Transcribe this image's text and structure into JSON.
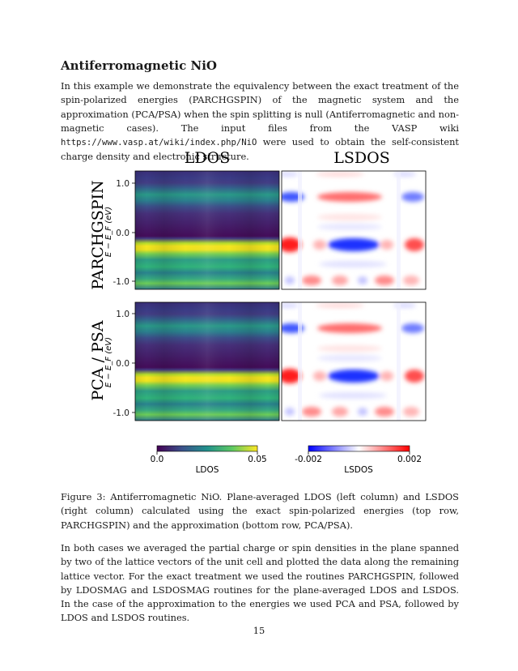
{
  "section": {
    "title": "Antiferromagnetic NiO"
  },
  "intro": {
    "text_before_url": "In this example we demonstrate the equivalency between the exact treatment of the spin-polarized energies (PARCHGSPIN) of the magnetic system and the approximation (PCA/PSA) when the spin splitting is null (Antiferromagnetic and non-magnetic cases). The input files from the VASP wiki ",
    "url": "https://www.vasp.at/wiki/index.php/NiO",
    "text_after_url": " were used to obtain the self-consistent charge density and electronic structure."
  },
  "figure": {
    "column_titles": [
      "LDOS",
      "LSDOS"
    ],
    "row_titles": [
      "PARCHGSPIN",
      "PCA / PSA"
    ],
    "y_axis_label": "E − E_F (eV)",
    "y_ticks": [
      "1.0",
      "0.0",
      "-1.0"
    ],
    "colorbars": [
      {
        "label": "LDOS",
        "min_label": "0.0",
        "max_label": "0.05",
        "colormap": "viridis"
      },
      {
        "label": "LSDOS",
        "min_label": "-0.002",
        "max_label": "0.002",
        "colormap": "bwr"
      }
    ]
  },
  "chart_data": [
    {
      "type": "heatmap",
      "title": "LDOS",
      "row": "PARCHGSPIN",
      "ylabel": "E − E_F (eV)",
      "ylim": [
        -1.1,
        1.3
      ],
      "yticks": [
        1.0,
        0.0,
        -1.0
      ],
      "colormap": "viridis",
      "clim": [
        0.0,
        0.05
      ],
      "bands_y_eV_value": [
        [
          1.05,
          0.025
        ],
        [
          0.72,
          0.02
        ],
        [
          -0.28,
          0.05
        ],
        [
          -0.68,
          0.03
        ],
        [
          -1.0,
          0.035
        ]
      ]
    },
    {
      "type": "heatmap",
      "title": "LSDOS",
      "row": "PARCHGSPIN",
      "ylim": [
        -1.1,
        1.3
      ],
      "colormap": "bwr",
      "clim": [
        -0.002,
        0.002
      ]
    },
    {
      "type": "heatmap",
      "title": "LDOS",
      "row": "PCA / PSA",
      "ylabel": "E − E_F (eV)",
      "ylim": [
        -1.1,
        1.3
      ],
      "yticks": [
        1.0,
        0.0,
        -1.0
      ],
      "colormap": "viridis",
      "clim": [
        0.0,
        0.05
      ],
      "bands_y_eV_value": [
        [
          1.05,
          0.025
        ],
        [
          0.72,
          0.02
        ],
        [
          -0.28,
          0.05
        ],
        [
          -0.68,
          0.03
        ],
        [
          -1.0,
          0.035
        ]
      ]
    },
    {
      "type": "heatmap",
      "title": "LSDOS",
      "row": "PCA / PSA",
      "ylim": [
        -1.1,
        1.3
      ],
      "colormap": "bwr",
      "clim": [
        -0.002,
        0.002
      ]
    }
  ],
  "caption": {
    "text": "Figure 3: Antiferromagnetic NiO. Plane-averaged LDOS (left column) and LSDOS (right column) calculated using the exact spin-polarized energies (top row, PARCHGSPIN) and the approximation (bottom row, PCA/PSA)."
  },
  "body": {
    "text": "In both cases we averaged the partial charge or spin densities in the plane spanned by two of the lattice vectors of the unit cell and plotted the data along the remaining lattice vector. For the exact treatment we used the routines PARCHGSPIN, followed by LDOSMAG and LSDOSMAG routines for the plane-averaged LDOS and LSDOS. In the case of the approximation to the energies we used PCA and PSA, followed by LDOS and LSDOS routines."
  },
  "page": {
    "number": "15"
  }
}
